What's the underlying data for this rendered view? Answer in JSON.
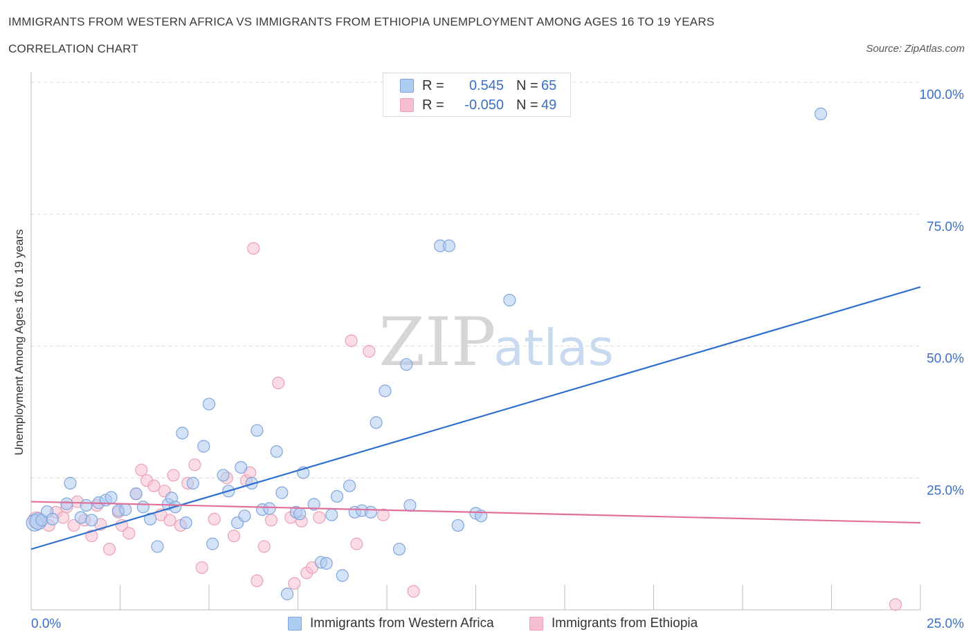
{
  "title": "IMMIGRANTS FROM WESTERN AFRICA VS IMMIGRANTS FROM ETHIOPIA UNEMPLOYMENT AMONG AGES 16 TO 19 YEARS",
  "subtitle": "CORRELATION CHART",
  "source": "Source: ZipAtlas.com",
  "watermark": {
    "zip": "ZIP",
    "atlas": "atlas"
  },
  "legend": {
    "rows": [
      {
        "r_label": "R =",
        "r_value": "0.545",
        "n_label": "N =",
        "n_value": "65"
      },
      {
        "r_label": "R =",
        "r_value": "-0.050",
        "n_label": "N =",
        "n_value": "49"
      }
    ]
  },
  "colors": {
    "blue_fill": "#aecbf0",
    "blue_stroke": "#7fa6dc",
    "blue_line": "#2e6fcd",
    "pink_fill": "#f6bfd0",
    "pink_stroke": "#eba0b8",
    "pink_line": "#e0709a",
    "tick_label": "#3a6fc8",
    "grid": "#dcdcdc"
  },
  "chart_data": {
    "type": "scatter",
    "title": "IMMIGRANTS FROM WESTERN AFRICA VS IMMIGRANTS FROM ETHIOPIA UNEMPLOYMENT AMONG AGES 16 TO 19 YEARS",
    "xlabel": "",
    "ylabel": "Unemployment Among Ages 16 to 19 years",
    "xlim": [
      0,
      25
    ],
    "ylim": [
      0,
      100
    ],
    "x_tick_labels": [
      "0.0%",
      "25.0%"
    ],
    "y_ticks": [
      25,
      50,
      75,
      100
    ],
    "y_tick_labels": [
      "25.0%",
      "50.0%",
      "75.0%",
      "100.0%"
    ],
    "grid": true,
    "legend_position": "bottom",
    "series": [
      {
        "name": "Immigrants from Western Africa",
        "color": "#aecbf0",
        "trend": {
          "x0": 0,
          "y0": 11.5,
          "x1": 25,
          "y1": 61.2
        },
        "points": [
          [
            0.1,
            16.5
          ],
          [
            0.2,
            16.8
          ],
          [
            0.3,
            17.0
          ],
          [
            0.45,
            18.6
          ],
          [
            0.6,
            17.2
          ],
          [
            1.0,
            20.1
          ],
          [
            1.1,
            24.0
          ],
          [
            1.4,
            17.5
          ],
          [
            1.55,
            19.8
          ],
          [
            1.7,
            17.0
          ],
          [
            1.9,
            20.3
          ],
          [
            2.1,
            20.8
          ],
          [
            2.25,
            21.3
          ],
          [
            2.45,
            18.8
          ],
          [
            2.65,
            19.0
          ],
          [
            2.95,
            22.0
          ],
          [
            3.15,
            19.5
          ],
          [
            3.35,
            17.2
          ],
          [
            3.55,
            12.0
          ],
          [
            3.85,
            20.0
          ],
          [
            3.95,
            21.2
          ],
          [
            4.05,
            19.5
          ],
          [
            4.25,
            33.5
          ],
          [
            4.35,
            16.5
          ],
          [
            4.55,
            24.0
          ],
          [
            4.85,
            31.0
          ],
          [
            5.0,
            39.0
          ],
          [
            5.1,
            12.5
          ],
          [
            5.4,
            25.5
          ],
          [
            5.55,
            22.5
          ],
          [
            5.8,
            16.5
          ],
          [
            5.9,
            27.0
          ],
          [
            6.0,
            17.8
          ],
          [
            6.2,
            24.0
          ],
          [
            6.35,
            34.0
          ],
          [
            6.5,
            19.0
          ],
          [
            6.7,
            19.2
          ],
          [
            6.9,
            30.0
          ],
          [
            7.05,
            22.2
          ],
          [
            7.2,
            3.0
          ],
          [
            7.45,
            18.5
          ],
          [
            7.55,
            18.2
          ],
          [
            7.65,
            26.0
          ],
          [
            7.95,
            20.0
          ],
          [
            8.15,
            9.0
          ],
          [
            8.3,
            8.8
          ],
          [
            8.45,
            18.0
          ],
          [
            8.6,
            21.5
          ],
          [
            8.75,
            6.5
          ],
          [
            8.95,
            23.5
          ],
          [
            9.1,
            18.5
          ],
          [
            9.3,
            18.8
          ],
          [
            9.55,
            18.5
          ],
          [
            9.7,
            35.5
          ],
          [
            9.95,
            41.5
          ],
          [
            10.35,
            11.5
          ],
          [
            10.55,
            46.5
          ],
          [
            10.65,
            19.8
          ],
          [
            11.5,
            69.0
          ],
          [
            11.75,
            69.0
          ],
          [
            12.0,
            16.0
          ],
          [
            12.5,
            18.3
          ],
          [
            12.65,
            17.8
          ],
          [
            13.45,
            58.7
          ],
          [
            22.2,
            94.0
          ]
        ]
      },
      {
        "name": "Immigrants from Ethiopia",
        "color": "#f6bfd0",
        "trend": {
          "x0": 0,
          "y0": 20.5,
          "x1": 25,
          "y1": 16.5
        },
        "points": [
          [
            0.15,
            17.0
          ],
          [
            0.5,
            16.0
          ],
          [
            0.7,
            18.5
          ],
          [
            0.9,
            17.5
          ],
          [
            1.0,
            19.5
          ],
          [
            1.2,
            16.0
          ],
          [
            1.3,
            20.5
          ],
          [
            1.5,
            17.0
          ],
          [
            1.7,
            14.0
          ],
          [
            1.85,
            19.8
          ],
          [
            1.95,
            16.2
          ],
          [
            2.2,
            11.5
          ],
          [
            2.45,
            18.5
          ],
          [
            2.55,
            16.0
          ],
          [
            2.75,
            14.5
          ],
          [
            2.95,
            22.0
          ],
          [
            3.1,
            26.5
          ],
          [
            3.25,
            24.5
          ],
          [
            3.45,
            23.5
          ],
          [
            3.65,
            18.0
          ],
          [
            3.75,
            22.5
          ],
          [
            3.9,
            17.0
          ],
          [
            4.0,
            25.5
          ],
          [
            4.2,
            16.0
          ],
          [
            4.4,
            24.0
          ],
          [
            4.6,
            27.5
          ],
          [
            4.8,
            8.0
          ],
          [
            5.15,
            17.2
          ],
          [
            5.5,
            25.0
          ],
          [
            5.7,
            14.0
          ],
          [
            6.05,
            24.5
          ],
          [
            6.15,
            26.0
          ],
          [
            6.25,
            68.5
          ],
          [
            6.35,
            5.5
          ],
          [
            6.55,
            12.0
          ],
          [
            6.75,
            17.0
          ],
          [
            6.95,
            43.0
          ],
          [
            7.3,
            17.5
          ],
          [
            7.4,
            5.0
          ],
          [
            7.6,
            16.8
          ],
          [
            7.75,
            7.0
          ],
          [
            7.9,
            8.0
          ],
          [
            8.1,
            17.5
          ],
          [
            9.0,
            51.0
          ],
          [
            9.15,
            12.5
          ],
          [
            9.5,
            49.0
          ],
          [
            9.9,
            18.0
          ],
          [
            10.75,
            3.5
          ],
          [
            24.3,
            1.0
          ]
        ]
      }
    ]
  }
}
